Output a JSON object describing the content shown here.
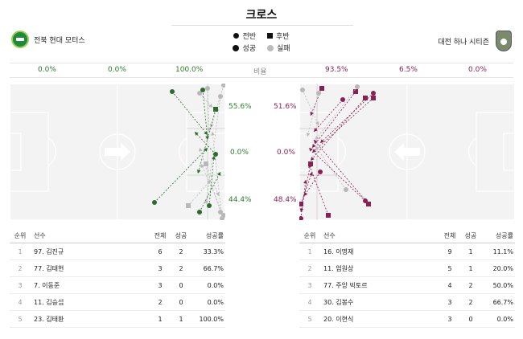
{
  "title": "크로스",
  "legend": {
    "first_half": "전반",
    "second_half": "후반",
    "success": "성공",
    "fail": "실패"
  },
  "home": {
    "name": "전북 현대 모터스",
    "stats": [
      "0.0%",
      "0.0%",
      "100.0%"
    ],
    "zones": {
      "top": "55.6%",
      "middle": "0.0%",
      "bottom": "44.4%"
    },
    "color": "#2d6a2d",
    "players": [
      {
        "rank": "1",
        "name": "97.  김진규",
        "total": "6",
        "success": "2",
        "rate": "33.3%"
      },
      {
        "rank": "2",
        "name": "77.  김태현",
        "total": "3",
        "success": "2",
        "rate": "66.7%"
      },
      {
        "rank": "3",
        "name": "7.  이동준",
        "total": "3",
        "success": "0",
        "rate": "0.0%"
      },
      {
        "rank": "4",
        "name": "11.  김승섭",
        "total": "2",
        "success": "0",
        "rate": "0.0%"
      },
      {
        "rank": "5",
        "name": "23.  김태환",
        "total": "1",
        "success": "1",
        "rate": "100.0%"
      }
    ]
  },
  "away": {
    "name": "대전 하나 시티즌",
    "stats": [
      "93.5%",
      "6.5%",
      "0.0%"
    ],
    "zones": {
      "top": "51.6%",
      "middle": "0.0%",
      "bottom": "48.4%"
    },
    "color": "#8a1f52",
    "players": [
      {
        "rank": "1",
        "name": "16.  이명재",
        "total": "9",
        "success": "1",
        "rate": "11.1%"
      },
      {
        "rank": "2",
        "name": "11.  엄원상",
        "total": "5",
        "success": "1",
        "rate": "20.0%"
      },
      {
        "rank": "3",
        "name": "77.  주앙 빅토르",
        "total": "4",
        "success": "2",
        "rate": "50.0%"
      },
      {
        "rank": "4",
        "name": "30.  김봉수",
        "total": "3",
        "success": "2",
        "rate": "66.7%"
      },
      {
        "rank": "5",
        "name": "20.  이현식",
        "total": "3",
        "success": "0",
        "rate": "0.0%"
      }
    ]
  },
  "stat_label": "비율",
  "table_headers": {
    "rank": "순위",
    "player": "선수",
    "total": "전체",
    "success": "성공",
    "rate": "성공률"
  }
}
